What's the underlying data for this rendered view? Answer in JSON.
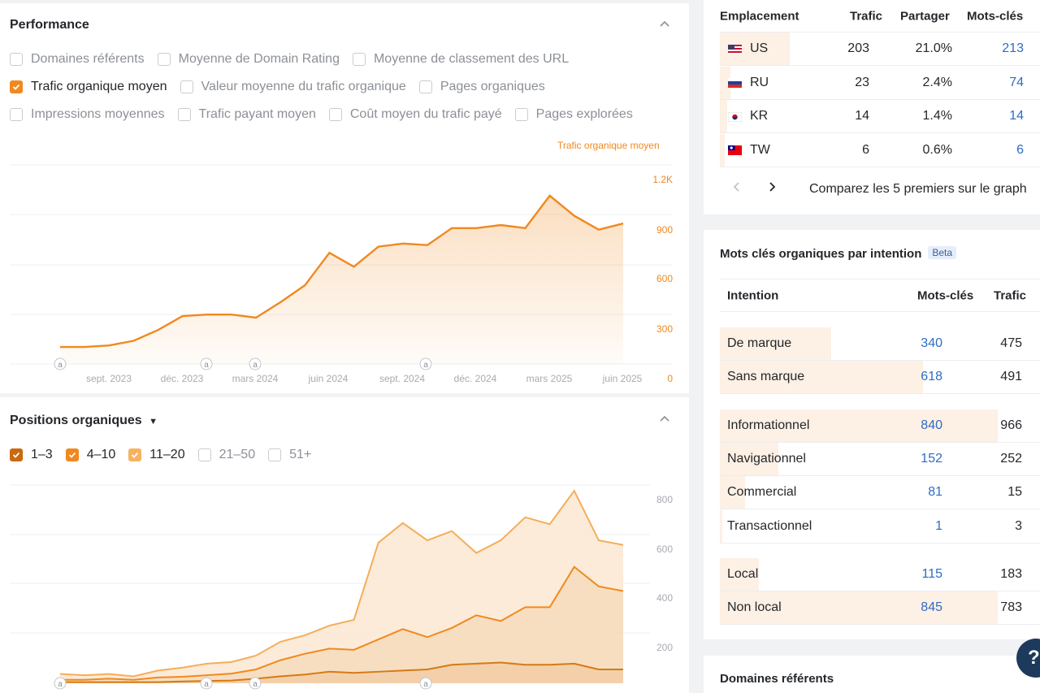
{
  "performance": {
    "title": "Performance",
    "metrics": [
      [
        {
          "label": "Domaines référents",
          "checked": false
        },
        {
          "label": "Moyenne de Domain Rating",
          "checked": false
        },
        {
          "label": "Moyenne de classement des URL",
          "checked": false
        }
      ],
      [
        {
          "label": "Trafic organique moyen",
          "checked": true
        },
        {
          "label": "Valeur moyenne du trafic organique",
          "checked": false
        },
        {
          "label": "Pages organiques",
          "checked": false
        }
      ],
      [
        {
          "label": "Impressions moyennes",
          "checked": false
        },
        {
          "label": "Trafic payant moyen",
          "checked": false
        },
        {
          "label": "Coût moyen du trafic payé",
          "checked": false
        },
        {
          "label": "Pages explorées",
          "checked": false
        }
      ]
    ],
    "series_label": "Trafic organique moyen",
    "annotation_marker": "a",
    "chart_data": {
      "type": "area",
      "series": [
        {
          "name": "Trafic organique moyen",
          "values": [
            110,
            110,
            120,
            150,
            220,
            310,
            320,
            320,
            300,
            400,
            510,
            720,
            630,
            760,
            780,
            770,
            880,
            880,
            900,
            880,
            1090,
            960,
            870,
            910
          ]
        }
      ],
      "color": "#f0891f",
      "y_ticks": [
        "0",
        "300",
        "600",
        "900",
        "1.2K"
      ],
      "ylim": [
        0,
        1200
      ],
      "x_ticks": [
        "sept. 2023",
        "déc. 2023",
        "mars 2024",
        "juin 2024",
        "sept. 2024",
        "déc. 2024",
        "mars 2025",
        "juin 2025"
      ]
    }
  },
  "positions": {
    "title": "Positions organiques",
    "ranges": [
      {
        "label": "1–3",
        "checked": true,
        "color": "#c96a10"
      },
      {
        "label": "4–10",
        "checked": true,
        "color": "#f0891f"
      },
      {
        "label": "11–20",
        "checked": true,
        "color": "#f5b360"
      },
      {
        "label": "21–50",
        "checked": false,
        "color": ""
      },
      {
        "label": "51+",
        "checked": false,
        "color": ""
      }
    ],
    "annotation_marker": "a",
    "chart_data": {
      "type": "area",
      "stacked": true,
      "ylim": [
        0,
        800
      ],
      "y_ticks": [
        "200",
        "400",
        "600",
        "800"
      ],
      "series": [
        {
          "name": "1–3",
          "values": [
            5,
            5,
            5,
            5,
            5,
            8,
            10,
            12,
            20,
            30,
            38,
            50,
            45,
            50,
            55,
            60,
            80,
            85,
            90,
            80,
            80,
            85,
            60,
            60
          ]
        },
        {
          "name": "4–10",
          "values": [
            10,
            10,
            15,
            10,
            20,
            20,
            25,
            30,
            40,
            70,
            90,
            100,
            100,
            140,
            180,
            140,
            160,
            210,
            180,
            250,
            250,
            420,
            360,
            340
          ]
        },
        {
          "name": "11–20",
          "values": [
            25,
            20,
            20,
            15,
            30,
            40,
            50,
            50,
            60,
            80,
            80,
            100,
            130,
            420,
            460,
            420,
            420,
            270,
            350,
            390,
            360,
            330,
            200,
            200
          ]
        }
      ]
    }
  },
  "locations": {
    "headers": [
      "Emplacement",
      "Trafic",
      "Partager",
      "Mots-clés"
    ],
    "rows": [
      {
        "code": "US",
        "traffic": "203",
        "share": "21.0%",
        "keywords": "213",
        "share_value": 21.0,
        "flag": "us"
      },
      {
        "code": "RU",
        "traffic": "23",
        "share": "2.4%",
        "keywords": "74",
        "share_value": 2.4,
        "flag": "ru"
      },
      {
        "code": "KR",
        "traffic": "14",
        "share": "1.4%",
        "keywords": "14",
        "share_value": 1.4,
        "flag": "kr"
      },
      {
        "code": "TW",
        "traffic": "6",
        "share": "0.6%",
        "keywords": "6",
        "share_value": 0.6,
        "flag": "tw"
      }
    ],
    "compare_text": "Comparez les 5 premiers sur le graph"
  },
  "intent": {
    "title": "Mots clés organiques par intention",
    "badge": "Beta",
    "headers": [
      "Intention",
      "Mots-clés",
      "Trafic"
    ],
    "groups": [
      [
        {
          "label": "De marque",
          "keywords": "340",
          "traffic": "475",
          "share": 0.4
        },
        {
          "label": "Sans marque",
          "keywords": "618",
          "traffic": "491",
          "share": 0.73
        }
      ],
      [
        {
          "label": "Informationnel",
          "keywords": "840",
          "traffic": "966",
          "share": 1.0
        },
        {
          "label": "Navigationnel",
          "keywords": "152",
          "traffic": "252",
          "share": 0.21
        },
        {
          "label": "Commercial",
          "keywords": "81",
          "traffic": "15",
          "share": 0.09
        },
        {
          "label": "Transactionnel",
          "keywords": "1",
          "traffic": "3",
          "share": 0.01
        }
      ],
      [
        {
          "label": "Local",
          "keywords": "115",
          "traffic": "183",
          "share": 0.14
        },
        {
          "label": "Non local",
          "keywords": "845",
          "traffic": "783",
          "share": 1.0
        }
      ]
    ]
  },
  "referring_domains": {
    "title": "Domaines référents"
  },
  "help": {
    "label": "?"
  }
}
